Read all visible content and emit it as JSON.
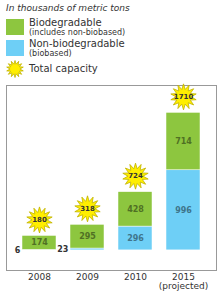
{
  "chart_data": {
    "type": "bar",
    "stacked": true,
    "subtitle": "In thousands of metric tons",
    "categories": [
      "2008",
      "2009",
      "2010",
      "2015\n(projected)"
    ],
    "series": [
      {
        "name": "Non-biodegradable",
        "description": "(biobased)",
        "color": "#6ecff6",
        "values": [
          6,
          23,
          296,
          996
        ]
      },
      {
        "name": "Biodegradable",
        "description": "(includes non-biobased)",
        "color": "#8dc63f",
        "values": [
          174,
          295,
          428,
          714
        ]
      }
    ],
    "totals": {
      "name": "Total capacity",
      "color": "#ffee00",
      "values": [
        180,
        318,
        724,
        1710
      ]
    },
    "ylim": [
      -250,
      2050
    ],
    "yticks": [],
    "data_labels": true,
    "tick_labels": "x",
    "grid": false
  }
}
